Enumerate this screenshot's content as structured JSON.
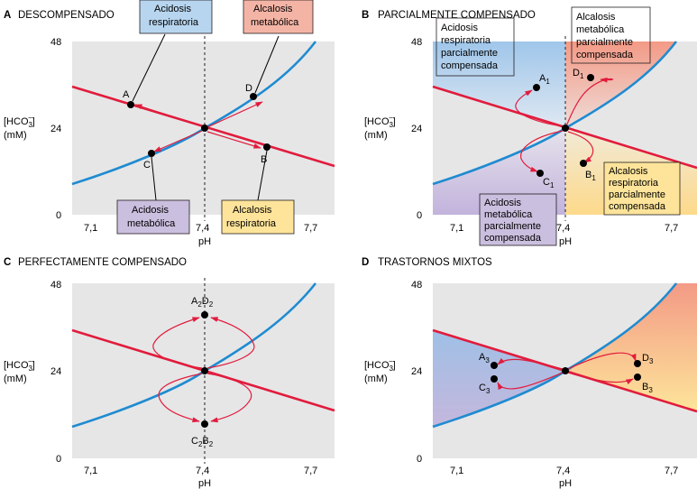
{
  "panels": [
    {
      "letter": "A",
      "title": "DESCOMPENSADO",
      "points": [
        {
          "id": "A",
          "sub": "",
          "ph": 7.2,
          "hco3": 31.2
        },
        {
          "id": "B",
          "sub": "",
          "ph": 7.6,
          "hco3": 19.0
        },
        {
          "id": "C",
          "sub": "",
          "ph": 7.2,
          "hco3": 17.0
        },
        {
          "id": "D",
          "sub": "",
          "ph": 7.6,
          "hco3": 33.0
        }
      ],
      "boxes": [
        {
          "lines": [
            "Acidosis",
            "respiratoria"
          ],
          "color": "#b7d5ef"
        },
        {
          "lines": [
            "Alcalosis",
            "metabólica"
          ],
          "color": "#f4b4a5"
        },
        {
          "lines": [
            "Acidosis",
            "metabólica"
          ],
          "color": "#cbbfdf"
        },
        {
          "lines": [
            "Alcalosis",
            "respiratoria"
          ],
          "color": "#fde49a"
        }
      ]
    },
    {
      "letter": "B",
      "title": "PARCIALMENTE COMPENSADO",
      "points": [
        {
          "id": "A",
          "sub": "1",
          "ph": 7.33,
          "hco3": 36.0
        },
        {
          "id": "B",
          "sub": "1",
          "ph": 7.45,
          "hco3": 14.0
        },
        {
          "id": "C",
          "sub": "1",
          "ph": 7.33,
          "hco3": 11.5
        },
        {
          "id": "D",
          "sub": "1",
          "ph": 7.47,
          "hco3": 38.0
        }
      ],
      "boxes": [
        {
          "lines": [
            "Acidosis",
            "respiratoria",
            "parcialmente",
            "compensada"
          ],
          "color": "#b7d5ef"
        },
        {
          "lines": [
            "Alcalosis",
            "metabólica",
            "parcialmente",
            "compensada"
          ],
          "color": "#f4b4a5"
        },
        {
          "lines": [
            "Acidosis",
            "metabólica",
            "parcialmente",
            "compensada"
          ],
          "color": "#cbbfdf"
        },
        {
          "lines": [
            "Alcalosis",
            "respiratoria",
            "parcialmente",
            "compensada"
          ],
          "color": "#fde49a"
        }
      ]
    },
    {
      "letter": "C",
      "title": "PERFECTAMENTE COMPENSADO",
      "points": [
        {
          "id": "A",
          "sub": "2",
          "id2": "D",
          "sub2": "2",
          "ph": 7.4,
          "hco3": 40.0
        },
        {
          "id": "C",
          "sub": "2",
          "id2": "B",
          "sub2": "2",
          "ph": 7.4,
          "hco3": 10.0
        }
      ],
      "boxes": []
    },
    {
      "letter": "D",
      "title": "TRASTORNOS MIXTOS",
      "points": [
        {
          "id": "A",
          "sub": "3",
          "ph": 7.2,
          "hco3": 26.5
        },
        {
          "id": "C",
          "sub": "3",
          "ph": 7.2,
          "hco3": 22.0
        },
        {
          "id": "D",
          "sub": "3",
          "ph": 7.6,
          "hco3": 27.0
        },
        {
          "id": "B",
          "sub": "3",
          "ph": 7.6,
          "hco3": 23.0
        }
      ],
      "boxes": []
    }
  ],
  "axis": {
    "ylabel_main": "[HCO",
    "ylabel_sub": "3",
    "ylabel_sup": "−",
    "ylabel_end": "]",
    "ylabel_unit": "(mM)",
    "xlabel": "pH",
    "xticks": [
      "7,1",
      "7,4",
      "7,7"
    ],
    "xtick_values": [
      7.1,
      7.4,
      7.7
    ],
    "yticks": [
      "0",
      "24",
      "48"
    ],
    "ytick_values": [
      0,
      24,
      48
    ],
    "xrange": [
      7.0,
      7.75
    ],
    "yrange": [
      0,
      48
    ]
  },
  "colors": {
    "plot_bg": "#e6e6e7",
    "isobar_line": "#1f8bd0",
    "buffer_line": "#e11c3c",
    "arrow": "#e11c3c",
    "resp_acidosis": "#b7d5ef",
    "metab_alkalosis": "#f4b4a5",
    "metab_acidosis": "#cbbfdf",
    "resp_alkalosis": "#fde49a"
  }
}
